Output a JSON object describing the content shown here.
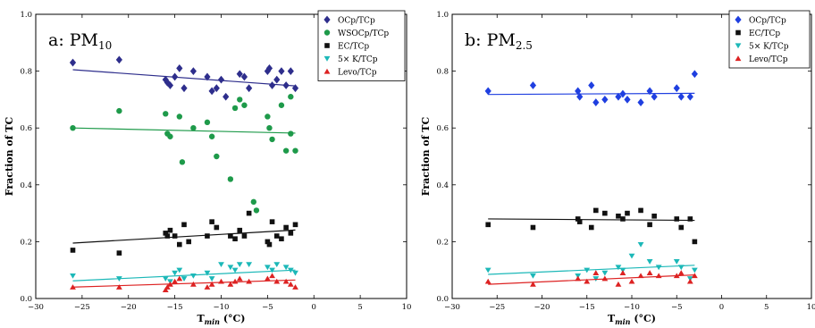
{
  "chart_data": [
    {
      "type": "scatter",
      "title": "a: PM",
      "title_sub": "10",
      "xlabel": "T",
      "xlabel_sub": "min",
      "xlabel_unit": " (°C)",
      "ylabel": "Fraction of TC",
      "xlim": [
        -30,
        10
      ],
      "ylim": [
        0,
        1.0
      ],
      "xticks": [
        -30,
        -25,
        -20,
        -15,
        -10,
        -5,
        0,
        5,
        10
      ],
      "xtick_labels": [
        "−30",
        "−25",
        "−20",
        "−15",
        "−10",
        "−5",
        "0",
        "5",
        "10"
      ],
      "yticks": [
        0.0,
        0.2,
        0.4,
        0.6,
        0.8,
        1.0
      ],
      "ytick_labels": [
        "0.0",
        "0.2",
        "0.4",
        "0.6",
        "0.8",
        "1.0"
      ],
      "grid": false,
      "legend_position": "top-right",
      "series": [
        {
          "name": "OCp/TCp",
          "color": "#2e2e8c",
          "marker": "diamond",
          "x": [
            -26,
            -21,
            -16,
            -15.8,
            -15.5,
            -15,
            -14.5,
            -14,
            -13,
            -11.5,
            -11,
            -10.5,
            -10,
            -9.5,
            -8,
            -7.5,
            -7,
            -5,
            -4.8,
            -4.5,
            -4,
            -3.5,
            -3,
            -2.5,
            -2
          ],
          "y": [
            0.83,
            0.84,
            0.77,
            0.76,
            0.75,
            0.78,
            0.81,
            0.74,
            0.8,
            0.78,
            0.73,
            0.74,
            0.77,
            0.71,
            0.79,
            0.78,
            0.74,
            0.8,
            0.81,
            0.75,
            0.77,
            0.8,
            0.75,
            0.8,
            0.74
          ],
          "trend": [
            [
              -26,
              0.805
            ],
            [
              -2,
              0.748
            ]
          ]
        },
        {
          "name": "WSOCp/TCp",
          "color": "#1e9a4a",
          "marker": "circle",
          "x": [
            -26,
            -21,
            -16,
            -15.8,
            -15.5,
            -14.5,
            -14.2,
            -13,
            -11.5,
            -11,
            -10.5,
            -9,
            -8.5,
            -8,
            -7.5,
            -6.5,
            -6.2,
            -5,
            -4.8,
            -4.5,
            -3.5,
            -3,
            -2.5,
            -2,
            -2.5
          ],
          "y": [
            0.6,
            0.66,
            0.65,
            0.58,
            0.57,
            0.64,
            0.48,
            0.6,
            0.62,
            0.57,
            0.5,
            0.42,
            0.67,
            0.7,
            0.68,
            0.34,
            0.31,
            0.64,
            0.6,
            0.56,
            0.68,
            0.52,
            0.58,
            0.52,
            0.71
          ],
          "trend": [
            [
              -26,
              0.6
            ],
            [
              -2,
              0.582
            ]
          ]
        },
        {
          "name": "EC/TCp",
          "color": "#111111",
          "marker": "square",
          "x": [
            -26,
            -21,
            -16,
            -15.8,
            -15.5,
            -15,
            -14.5,
            -14,
            -13.5,
            -11.5,
            -11,
            -10.5,
            -9,
            -8.5,
            -8,
            -7.5,
            -7,
            -5,
            -4.8,
            -4.5,
            -4,
            -3.5,
            -3,
            -2.5,
            -2
          ],
          "y": [
            0.17,
            0.16,
            0.23,
            0.22,
            0.24,
            0.22,
            0.19,
            0.26,
            0.2,
            0.22,
            0.27,
            0.25,
            0.22,
            0.21,
            0.24,
            0.22,
            0.3,
            0.2,
            0.19,
            0.27,
            0.22,
            0.21,
            0.25,
            0.23,
            0.26
          ],
          "trend": [
            [
              -26,
              0.195
            ],
            [
              -2,
              0.241
            ]
          ]
        },
        {
          "name": "5× K/TCp",
          "color": "#1cb8b8",
          "marker": "triangle-down",
          "x": [
            -26,
            -21,
            -16,
            -15.5,
            -15,
            -14.5,
            -14,
            -13,
            -11.5,
            -11,
            -10,
            -9,
            -8.5,
            -8,
            -7,
            -5,
            -4.5,
            -4,
            -3,
            -2.5,
            -2
          ],
          "y": [
            0.08,
            0.07,
            0.07,
            0.06,
            0.09,
            0.1,
            0.07,
            0.08,
            0.09,
            0.07,
            0.12,
            0.11,
            0.1,
            0.12,
            0.12,
            0.11,
            0.1,
            0.12,
            0.11,
            0.1,
            0.09
          ],
          "trend": [
            [
              -26,
              0.062
            ],
            [
              -2,
              0.1
            ]
          ]
        },
        {
          "name": "Levo/TCp",
          "color": "#dd2222",
          "marker": "triangle-up",
          "x": [
            -26,
            -21,
            -16,
            -15.8,
            -15.5,
            -15,
            -14.5,
            -13,
            -11.5,
            -11,
            -10,
            -9,
            -8.5,
            -8,
            -7,
            -5,
            -4.5,
            -4,
            -3,
            -2.5,
            -2
          ],
          "y": [
            0.04,
            0.04,
            0.03,
            0.04,
            0.05,
            0.06,
            0.07,
            0.05,
            0.04,
            0.05,
            0.06,
            0.05,
            0.06,
            0.07,
            0.06,
            0.07,
            0.08,
            0.06,
            0.06,
            0.05,
            0.04
          ],
          "trend": [
            [
              -26,
              0.04
            ],
            [
              -2,
              0.065
            ]
          ]
        }
      ]
    },
    {
      "type": "scatter",
      "title": "b: PM",
      "title_sub": "2.5",
      "xlabel": "T",
      "xlabel_sub": "min",
      "xlabel_unit": " (°C)",
      "ylabel": "Fraction of TC",
      "xlim": [
        -30,
        10
      ],
      "ylim": [
        0,
        1.0
      ],
      "xticks": [
        -30,
        -25,
        -20,
        -15,
        -10,
        -5,
        0,
        5,
        10
      ],
      "xtick_labels": [
        "−30",
        "−25",
        "−20",
        "−15",
        "−10",
        "−5",
        "0",
        "5",
        "10"
      ],
      "yticks": [
        0.0,
        0.2,
        0.4,
        0.6,
        0.8,
        1.0
      ],
      "ytick_labels": [
        "0.0",
        "0.2",
        "0.4",
        "0.6",
        "0.8",
        "1.0"
      ],
      "grid": false,
      "legend_position": "top-right",
      "series": [
        {
          "name": "OCp/TCp",
          "color": "#1f3fe0",
          "marker": "diamond",
          "x": [
            -26,
            -21,
            -16,
            -15.8,
            -14.5,
            -14,
            -13,
            -11.5,
            -11,
            -10.5,
            -9,
            -8,
            -7.5,
            -5,
            -4.5,
            -3.5,
            -3
          ],
          "y": [
            0.73,
            0.75,
            0.73,
            0.71,
            0.75,
            0.69,
            0.7,
            0.71,
            0.72,
            0.7,
            0.69,
            0.73,
            0.71,
            0.74,
            0.71,
            0.71,
            0.79
          ],
          "trend": [
            [
              -26,
              0.718
            ],
            [
              -3,
              0.722
            ]
          ]
        },
        {
          "name": "EC/TCp",
          "color": "#111111",
          "marker": "square",
          "x": [
            -26,
            -21,
            -16,
            -15.8,
            -14.5,
            -14,
            -13,
            -11.5,
            -11,
            -10.5,
            -9,
            -8,
            -7.5,
            -5,
            -4.5,
            -3.5,
            -3
          ],
          "y": [
            0.26,
            0.25,
            0.28,
            0.27,
            0.25,
            0.31,
            0.3,
            0.29,
            0.28,
            0.3,
            0.31,
            0.26,
            0.29,
            0.28,
            0.25,
            0.28,
            0.2
          ],
          "trend": [
            [
              -26,
              0.28
            ],
            [
              -3,
              0.275
            ]
          ]
        },
        {
          "name": "5× K/TCp",
          "color": "#1cb8b8",
          "marker": "triangle-down",
          "x": [
            -26,
            -21,
            -16,
            -15,
            -14,
            -13,
            -11.5,
            -11,
            -10,
            -9,
            -8,
            -7,
            -5,
            -4.5,
            -3.5,
            -3
          ],
          "y": [
            0.1,
            0.08,
            0.08,
            0.1,
            0.07,
            0.09,
            0.11,
            0.1,
            0.15,
            0.19,
            0.13,
            0.11,
            0.13,
            0.11,
            0.07,
            0.1
          ],
          "trend": [
            [
              -26,
              0.085
            ],
            [
              -3,
              0.117
            ]
          ]
        },
        {
          "name": "Levo/TCp",
          "color": "#dd2222",
          "marker": "triangle-up",
          "x": [
            -26,
            -21,
            -16,
            -15,
            -14,
            -13,
            -11.5,
            -11,
            -10,
            -9,
            -8,
            -7,
            -5,
            -4.5,
            -3.5,
            -3
          ],
          "y": [
            0.06,
            0.05,
            0.07,
            0.06,
            0.09,
            0.07,
            0.05,
            0.09,
            0.06,
            0.08,
            0.09,
            0.08,
            0.08,
            0.09,
            0.06,
            0.08
          ],
          "trend": [
            [
              -26,
              0.05
            ],
            [
              -3,
              0.083
            ]
          ]
        }
      ]
    }
  ]
}
